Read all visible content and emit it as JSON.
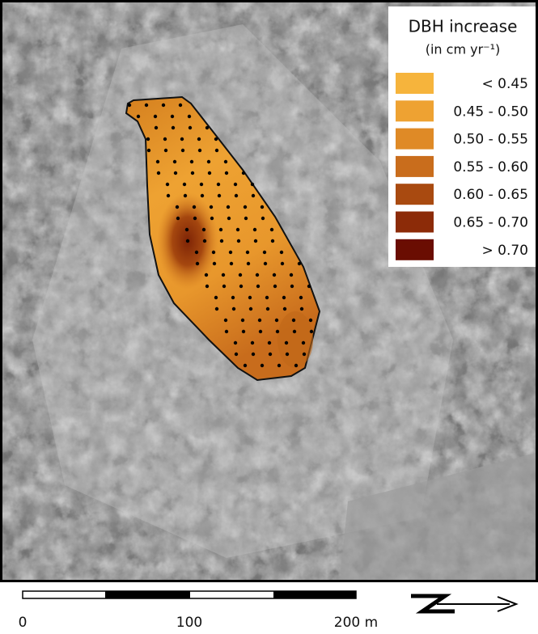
{
  "legend": {
    "title": "DBH increase",
    "unit": "(in cm yr⁻¹)",
    "items": [
      {
        "label": "< 0.45",
        "color": "#f6b43c"
      },
      {
        "label": "0.45 - 0.50",
        "color": "#eea232"
      },
      {
        "label": "0.50 - 0.55",
        "color": "#df8a26"
      },
      {
        "label": "0.55 - 0.60",
        "color": "#c96d1c"
      },
      {
        "label": "0.60 - 0.65",
        "color": "#a94a10"
      },
      {
        "label": "0.65 - 0.70",
        "color": "#8c2b08"
      },
      {
        "label": "> 0.70",
        "color": "#6a0d02"
      }
    ]
  },
  "scale_bar": {
    "labels": [
      "0",
      "100",
      "200 m"
    ]
  }
}
